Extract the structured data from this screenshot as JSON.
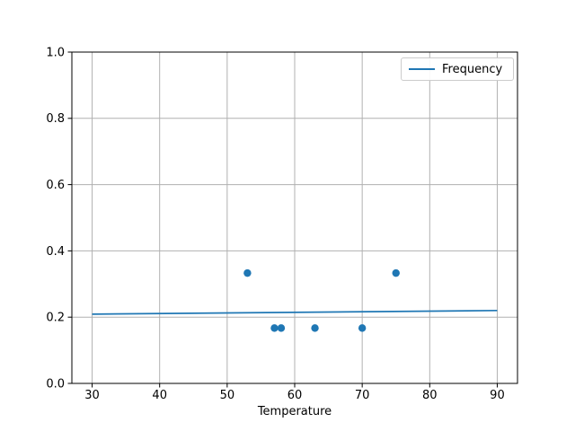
{
  "chart_data": {
    "type": "scatter",
    "title": "",
    "xlabel": "Temperature",
    "ylabel": "",
    "xlim": [
      27,
      93
    ],
    "ylim": [
      0.0,
      1.0
    ],
    "xticks": [
      30,
      40,
      50,
      60,
      70,
      80,
      90
    ],
    "xtick_labels": [
      "30",
      "40",
      "50",
      "60",
      "70",
      "80",
      "90"
    ],
    "yticks": [
      0.0,
      0.2,
      0.4,
      0.6,
      0.8,
      1.0
    ],
    "ytick_labels": [
      "0.0",
      "0.2",
      "0.4",
      "0.6",
      "0.8",
      "1.0"
    ],
    "grid": true,
    "legend": {
      "position": "upper-right",
      "entries": [
        {
          "label": "Frequency",
          "color": "#1f77b4",
          "marker": "line"
        }
      ]
    },
    "series": [
      {
        "name": "Frequency",
        "type": "line",
        "color": "#1f77b4",
        "x": [
          30,
          90
        ],
        "y": [
          0.209,
          0.22
        ]
      },
      {
        "name": "",
        "type": "scatter",
        "color": "#1f77b4",
        "x": [
          53,
          57,
          58,
          63,
          70,
          75
        ],
        "y": [
          0.333,
          0.167,
          0.167,
          0.167,
          0.167,
          0.333
        ]
      }
    ],
    "colors": {
      "background": "#ffffff",
      "grid": "#b0b0b0",
      "axis": "#000000",
      "text": "#000000",
      "accent": "#1f77b4",
      "legend_border": "#cccccc"
    }
  }
}
